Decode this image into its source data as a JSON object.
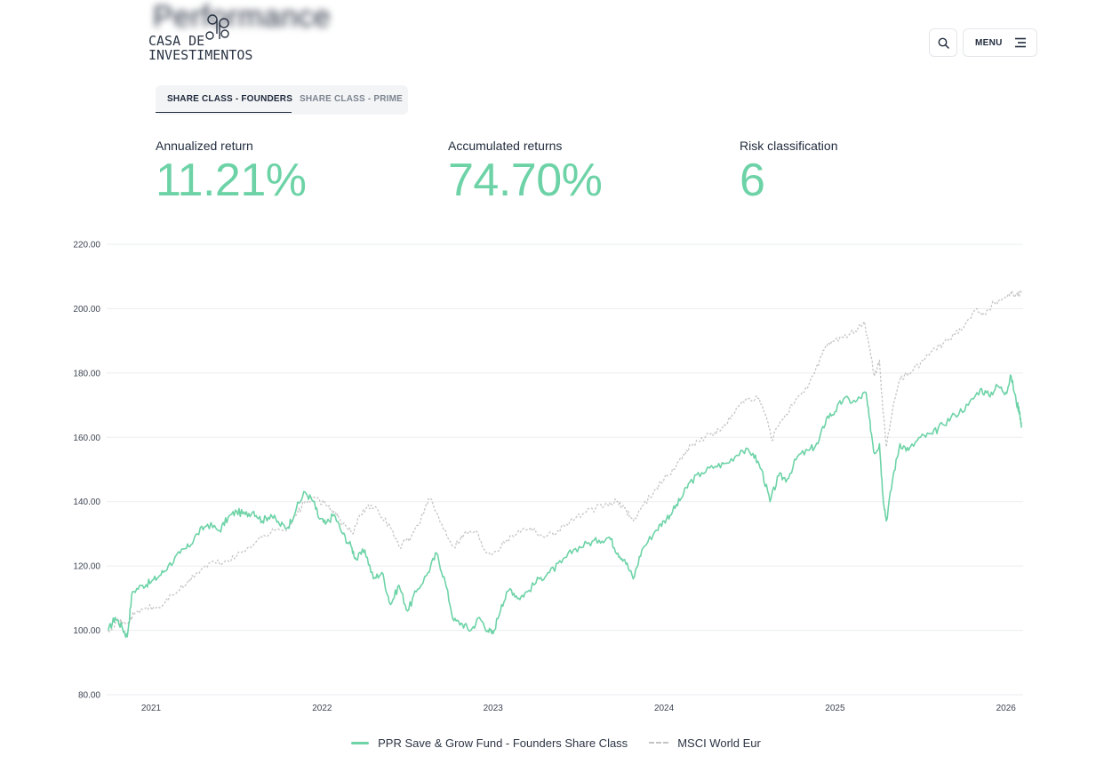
{
  "page": {
    "blurred_heading": "Performance"
  },
  "logo": {
    "line1": "CASA DE",
    "line2": "INVESTIMENTOS"
  },
  "header": {
    "menu_label": "MENU"
  },
  "tabs": [
    {
      "label": "SHARE CLASS - FOUNDERS",
      "active": true
    },
    {
      "label": "SHARE CLASS - PRIME",
      "active": false
    }
  ],
  "stats": [
    {
      "label": "Annualized return",
      "value": "11.21%"
    },
    {
      "label": "Accumulated returns",
      "value": "74.70%"
    },
    {
      "label": "Risk classification",
      "value": "6"
    }
  ],
  "colors": {
    "fund": "#6dd3a7",
    "benchmark": "#c4c4c4",
    "accent": "#6dd3a7"
  },
  "icons": {
    "search": "search-icon",
    "menu": "hamburger-icon"
  },
  "chart_data": {
    "type": "line",
    "ylim": [
      80,
      220
    ],
    "yticks": [
      "220.00",
      "200.00",
      "180.00",
      "160.00",
      "140.00",
      "120.00",
      "100.00",
      "80.00"
    ],
    "ytick_values": [
      220,
      200,
      180,
      160,
      140,
      120,
      100,
      80
    ],
    "xticks": [
      "2021",
      "2022",
      "2023",
      "2024",
      "2025",
      "2026"
    ],
    "xlim": [
      2020.74,
      2026.1
    ],
    "grid": true,
    "legend_position": "bottom-center",
    "series": [
      {
        "name": "PPR Save & Grow Fund - Founders Share Class",
        "style": "solid",
        "points": [
          [
            2020.75,
            100
          ],
          [
            2020.79,
            104
          ],
          [
            2020.83,
            101
          ],
          [
            2020.86,
            98
          ],
          [
            2020.89,
            112
          ],
          [
            2020.95,
            114
          ],
          [
            2021.0,
            115
          ],
          [
            2021.05,
            117
          ],
          [
            2021.1,
            120
          ],
          [
            2021.17,
            124
          ],
          [
            2021.22,
            126
          ],
          [
            2021.27,
            130
          ],
          [
            2021.33,
            133
          ],
          [
            2021.4,
            131
          ],
          [
            2021.45,
            135
          ],
          [
            2021.5,
            137
          ],
          [
            2021.55,
            136
          ],
          [
            2021.6,
            137
          ],
          [
            2021.65,
            134
          ],
          [
            2021.7,
            136
          ],
          [
            2021.75,
            133
          ],
          [
            2021.8,
            132
          ],
          [
            2021.85,
            138
          ],
          [
            2021.9,
            143
          ],
          [
            2021.95,
            140
          ],
          [
            2021.98,
            135
          ],
          [
            2022.02,
            133
          ],
          [
            2022.07,
            136
          ],
          [
            2022.12,
            130
          ],
          [
            2022.17,
            126
          ],
          [
            2022.2,
            122
          ],
          [
            2022.25,
            125
          ],
          [
            2022.3,
            116
          ],
          [
            2022.35,
            118
          ],
          [
            2022.4,
            108
          ],
          [
            2022.45,
            114
          ],
          [
            2022.5,
            106
          ],
          [
            2022.55,
            112
          ],
          [
            2022.62,
            118
          ],
          [
            2022.67,
            124
          ],
          [
            2022.72,
            115
          ],
          [
            2022.77,
            103
          ],
          [
            2022.82,
            102
          ],
          [
            2022.87,
            100
          ],
          [
            2022.92,
            104
          ],
          [
            2022.97,
            100
          ],
          [
            2023.0,
            99
          ],
          [
            2023.05,
            108
          ],
          [
            2023.1,
            113
          ],
          [
            2023.15,
            110
          ],
          [
            2023.2,
            112
          ],
          [
            2023.27,
            116
          ],
          [
            2023.33,
            118
          ],
          [
            2023.4,
            121
          ],
          [
            2023.47,
            125
          ],
          [
            2023.55,
            127
          ],
          [
            2023.62,
            128
          ],
          [
            2023.68,
            129
          ],
          [
            2023.73,
            124
          ],
          [
            2023.77,
            122
          ],
          [
            2023.82,
            116
          ],
          [
            2023.87,
            125
          ],
          [
            2023.95,
            131
          ],
          [
            2024.0,
            134
          ],
          [
            2024.05,
            137
          ],
          [
            2024.1,
            141
          ],
          [
            2024.15,
            146
          ],
          [
            2024.22,
            149
          ],
          [
            2024.3,
            151
          ],
          [
            2024.37,
            152
          ],
          [
            2024.45,
            156
          ],
          [
            2024.52,
            155
          ],
          [
            2024.57,
            150
          ],
          [
            2024.62,
            140
          ],
          [
            2024.67,
            148
          ],
          [
            2024.72,
            147
          ],
          [
            2024.78,
            154
          ],
          [
            2024.85,
            156
          ],
          [
            2024.9,
            158
          ],
          [
            2024.95,
            166
          ],
          [
            2025.0,
            168
          ],
          [
            2025.05,
            172
          ],
          [
            2025.12,
            171
          ],
          [
            2025.18,
            174
          ],
          [
            2025.2,
            166
          ],
          [
            2025.23,
            155
          ],
          [
            2025.26,
            158
          ],
          [
            2025.28,
            142
          ],
          [
            2025.3,
            134
          ],
          [
            2025.34,
            148
          ],
          [
            2025.38,
            158
          ],
          [
            2025.43,
            156
          ],
          [
            2025.5,
            160
          ],
          [
            2025.57,
            161
          ],
          [
            2025.63,
            164
          ],
          [
            2025.7,
            167
          ],
          [
            2025.78,
            170
          ],
          [
            2025.85,
            175
          ],
          [
            2025.9,
            173
          ],
          [
            2025.95,
            176
          ],
          [
            2026.0,
            174
          ],
          [
            2026.03,
            179
          ],
          [
            2026.06,
            171
          ],
          [
            2026.08,
            168
          ],
          [
            2026.09,
            163
          ]
        ]
      },
      {
        "name": "MSCI World Eur",
        "style": "dashed",
        "points": [
          [
            2020.75,
            100
          ],
          [
            2020.8,
            103
          ],
          [
            2020.85,
            102
          ],
          [
            2020.9,
            105
          ],
          [
            2020.97,
            107
          ],
          [
            2021.05,
            107
          ],
          [
            2021.12,
            111
          ],
          [
            2021.2,
            114
          ],
          [
            2021.27,
            118
          ],
          [
            2021.35,
            121
          ],
          [
            2021.42,
            121
          ],
          [
            2021.5,
            123
          ],
          [
            2021.57,
            126
          ],
          [
            2021.65,
            129
          ],
          [
            2021.72,
            131
          ],
          [
            2021.8,
            132
          ],
          [
            2021.85,
            136
          ],
          [
            2021.9,
            140
          ],
          [
            2021.97,
            141
          ],
          [
            2022.02,
            139
          ],
          [
            2022.07,
            137
          ],
          [
            2022.12,
            133
          ],
          [
            2022.18,
            130
          ],
          [
            2022.22,
            136
          ],
          [
            2022.27,
            139
          ],
          [
            2022.33,
            137
          ],
          [
            2022.4,
            132
          ],
          [
            2022.45,
            126
          ],
          [
            2022.52,
            129
          ],
          [
            2022.58,
            135
          ],
          [
            2022.63,
            141
          ],
          [
            2022.7,
            133
          ],
          [
            2022.77,
            126
          ],
          [
            2022.83,
            130
          ],
          [
            2022.9,
            131
          ],
          [
            2022.95,
            125
          ],
          [
            2023.0,
            124
          ],
          [
            2023.08,
            128
          ],
          [
            2023.15,
            131
          ],
          [
            2023.22,
            132
          ],
          [
            2023.3,
            129
          ],
          [
            2023.38,
            131
          ],
          [
            2023.45,
            134
          ],
          [
            2023.52,
            136
          ],
          [
            2023.6,
            138
          ],
          [
            2023.67,
            139
          ],
          [
            2023.72,
            140
          ],
          [
            2023.77,
            138
          ],
          [
            2023.82,
            134
          ],
          [
            2023.88,
            139
          ],
          [
            2023.95,
            144
          ],
          [
            2024.0,
            147
          ],
          [
            2024.07,
            151
          ],
          [
            2024.13,
            156
          ],
          [
            2024.2,
            159
          ],
          [
            2024.27,
            161
          ],
          [
            2024.33,
            162
          ],
          [
            2024.4,
            167
          ],
          [
            2024.48,
            172
          ],
          [
            2024.55,
            172
          ],
          [
            2024.6,
            166
          ],
          [
            2024.63,
            159
          ],
          [
            2024.68,
            165
          ],
          [
            2024.75,
            170
          ],
          [
            2024.82,
            174
          ],
          [
            2024.88,
            180
          ],
          [
            2024.93,
            187
          ],
          [
            2024.98,
            190
          ],
          [
            2025.05,
            191
          ],
          [
            2025.12,
            193
          ],
          [
            2025.17,
            196
          ],
          [
            2025.2,
            188
          ],
          [
            2025.23,
            179
          ],
          [
            2025.26,
            184
          ],
          [
            2025.28,
            168
          ],
          [
            2025.3,
            157
          ],
          [
            2025.34,
            170
          ],
          [
            2025.38,
            178
          ],
          [
            2025.43,
            180
          ],
          [
            2025.5,
            183
          ],
          [
            2025.57,
            187
          ],
          [
            2025.63,
            189
          ],
          [
            2025.7,
            192
          ],
          [
            2025.77,
            196
          ],
          [
            2025.83,
            200
          ],
          [
            2025.88,
            198
          ],
          [
            2025.93,
            202
          ],
          [
            2025.98,
            203
          ],
          [
            2026.03,
            205
          ],
          [
            2026.06,
            204
          ],
          [
            2026.09,
            205
          ]
        ]
      }
    ]
  }
}
